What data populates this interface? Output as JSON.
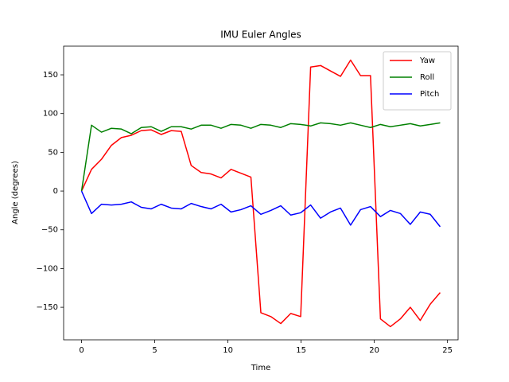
{
  "chart_data": {
    "type": "line",
    "title": "IMU Euler Angles",
    "x_label": "Time",
    "y_label": "Angle (degrees)",
    "x": [
      0,
      0.68,
      1.36,
      2.04,
      2.72,
      3.4,
      4.08,
      4.76,
      5.44,
      6.13,
      6.81,
      7.49,
      8.17,
      8.85,
      9.53,
      10.21,
      10.89,
      11.57,
      12.25,
      12.93,
      13.61,
      14.29,
      14.97,
      15.65,
      16.33,
      17.01,
      17.69,
      18.38,
      19.06,
      19.74,
      20.42,
      21.1,
      21.78,
      22.46,
      23.14,
      23.82,
      24.5
    ],
    "series": [
      {
        "name": "Yaw",
        "color": "#ff0000",
        "values": [
          0,
          28,
          41,
          59,
          69,
          72,
          78,
          79,
          73,
          78,
          77,
          33,
          24,
          22,
          17,
          28,
          23,
          18,
          -157,
          -162,
          -171,
          -158,
          -162,
          160,
          162,
          155,
          148,
          169,
          149,
          149,
          -165,
          -175,
          -165,
          -150,
          -167,
          -146,
          -131
        ]
      },
      {
        "name": "Roll",
        "color": "#008000",
        "values": [
          0,
          85,
          76,
          81,
          80,
          74,
          82,
          83,
          77,
          83,
          83,
          80,
          85,
          85,
          81,
          86,
          85,
          81,
          86,
          85,
          82,
          87,
          86,
          84,
          88,
          87,
          85,
          88,
          85,
          82,
          86,
          83,
          85,
          87,
          84,
          86,
          88
        ]
      },
      {
        "name": "Pitch",
        "color": "#0000ff",
        "values": [
          0,
          -29,
          -17,
          -18,
          -17,
          -14,
          -21,
          -23,
          -17,
          -22,
          -23,
          -16,
          -20,
          -23,
          -17,
          -27,
          -24,
          -19,
          -30,
          -25,
          -19,
          -31,
          -28,
          -18,
          -35,
          -27,
          -22,
          -44,
          -24,
          -20,
          -33,
          -25,
          -29,
          -43,
          -27,
          -30,
          -46
        ]
      }
    ],
    "xlim": [
      -1.225,
      25.725
    ],
    "ylim": [
      -192,
      187
    ],
    "xticks": [
      0,
      5,
      10,
      15,
      20,
      25
    ],
    "yticks": [
      {
        "value": -150,
        "label": "−150"
      },
      {
        "value": -100,
        "label": "−100"
      },
      {
        "value": -50,
        "label": "−50"
      },
      0,
      50,
      100,
      150
    ],
    "legend": "upper right",
    "grid": false
  }
}
